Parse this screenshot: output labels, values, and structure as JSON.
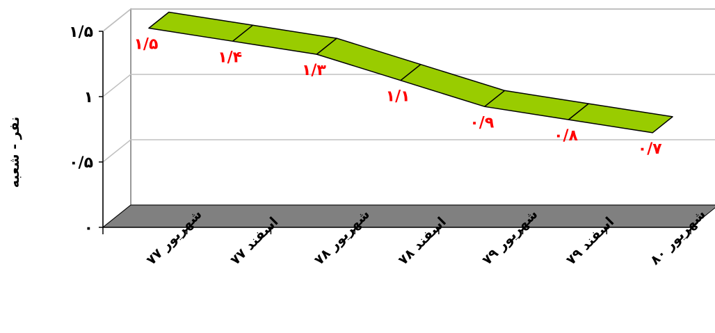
{
  "chart_data": {
    "type": "line",
    "title": "",
    "xlabel": "",
    "ylabel": "نفر - شعبه",
    "categories": [
      "شهریور ۷۷",
      "اسفند ۷۷",
      "شهریور ۷۸",
      "اسفند ۷۸",
      "شهریور ۷۹",
      "اسفند ۷۹",
      "شهریور ۸۰"
    ],
    "values": [
      1.5,
      1.4,
      1.3,
      1.1,
      0.9,
      0.8,
      0.7
    ],
    "data_labels": [
      "۱/۵",
      "۱/۴",
      "۱/۳",
      "۱/۱",
      "۰/۹",
      "۰/۸",
      "۰/۷"
    ],
    "y_ticks": [
      {
        "value": 0,
        "label": "۰"
      },
      {
        "value": 0.5,
        "label": "۰/۵"
      },
      {
        "value": 1,
        "label": "۱"
      },
      {
        "value": 1.5,
        "label": "۱/۵"
      }
    ],
    "ylim": [
      0,
      1.5
    ],
    "grid": true,
    "legend": "none",
    "style": "3d-ribbon",
    "colors": {
      "ribbon": "#99cc00",
      "floor": "#808080",
      "label": "#ff0000",
      "gridline": "#c0c0c0"
    }
  }
}
